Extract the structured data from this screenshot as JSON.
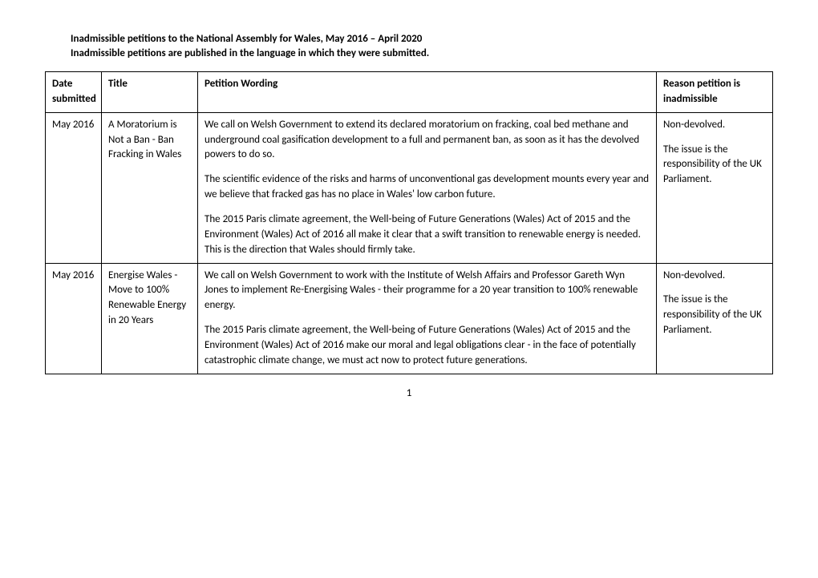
{
  "intro_line1": "Inadmissible petitions to the National Assembly for Wales, May 2016 – April 2020",
  "intro_line2": "Inadmissible petitions are published in the language in which they were submitted.",
  "headers": {
    "date": "Date submitted",
    "title": "Title",
    "wording": "Petition Wording",
    "reason": "Reason petition is inadmissible"
  },
  "rows": [
    {
      "date": "May 2016",
      "title": "A Moratorium is Not a Ban - Ban Fracking in Wales",
      "wording": [
        "We call on Welsh Government to extend its declared moratorium on fracking, coal bed methane and underground coal gasification development to a full and permanent ban, as soon as it has the devolved powers to do so.",
        "The scientific evidence of the risks and harms of unconventional gas development mounts every year and we believe that fracked gas has no place in Wales' low carbon future.",
        "The 2015 Paris climate agreement, the Well-being of Future Generations (Wales) Act of 2015 and the Environment (Wales) Act of 2016 all make it clear that a swift transition to renewable energy is needed. This is the direction that Wales should firmly take."
      ],
      "reason": [
        "Non-devolved.",
        "The issue is the responsibility of the UK Parliament."
      ]
    },
    {
      "date": "May 2016",
      "title": "Energise Wales - Move to 100% Renewable Energy in 20 Years",
      "wording": [
        "We call on Welsh Government to work with the Institute of Welsh Affairs and Professor Gareth Wyn Jones to implement Re-Energising Wales - their programme for a 20 year transition to 100% renewable energy.",
        "The 2015 Paris climate agreement, the Well-being of Future Generations (Wales) Act of 2015 and the Environment (Wales) Act of 2016 make our moral and legal obligations clear - in the face of potentially catastrophic climate change, we must act now to protect future generations."
      ],
      "reason": [
        "Non-devolved.",
        "The issue is the responsibility of the UK Parliament."
      ]
    }
  ],
  "page_number": "1"
}
